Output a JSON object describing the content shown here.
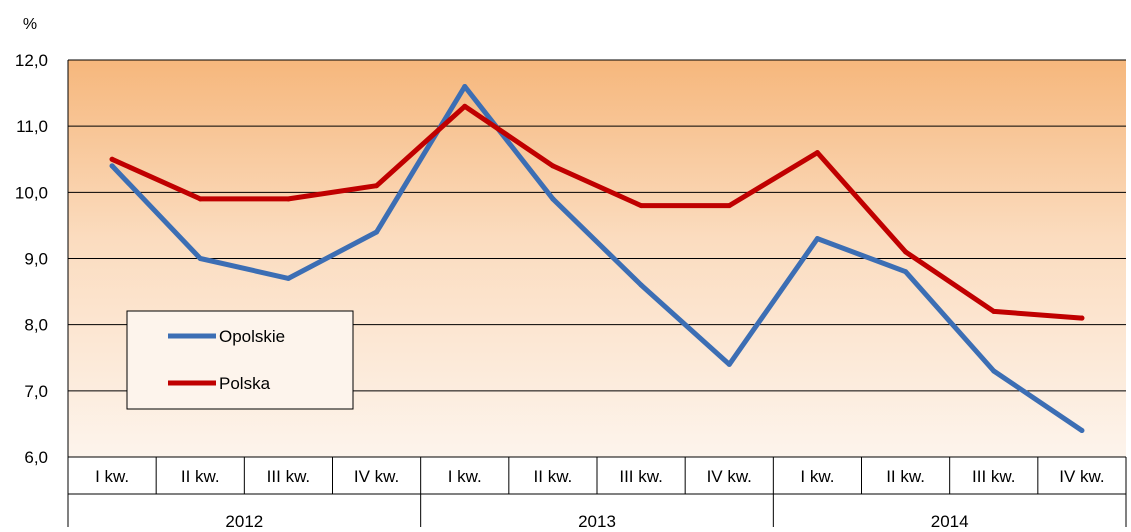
{
  "chart_data": {
    "type": "line",
    "ylabel": "%",
    "ylim": [
      6.0,
      12.0
    ],
    "yticks": [
      "6,0",
      "7,0",
      "8,0",
      "9,0",
      "10,0",
      "11,0",
      "12,0"
    ],
    "quarters": [
      "I kw.",
      "II kw.",
      "III kw.",
      "IV kw.",
      "I kw.",
      "II kw.",
      "III kw.",
      "IV kw.",
      "I kw.",
      "II kw.",
      "III kw.",
      "IV kw."
    ],
    "years": [
      "2012",
      "2013",
      "2014"
    ],
    "series": [
      {
        "name": "Opolskie",
        "color": "#3c6eb4",
        "values": [
          10.4,
          9.0,
          8.7,
          9.4,
          11.6,
          9.9,
          8.6,
          7.4,
          9.3,
          8.8,
          7.3,
          6.4
        ]
      },
      {
        "name": "Polska",
        "color": "#c00000",
        "values": [
          10.5,
          9.9,
          9.9,
          10.1,
          11.3,
          10.4,
          9.8,
          9.8,
          10.6,
          9.1,
          8.2,
          8.1
        ]
      }
    ],
    "grid": true,
    "legend_position": "bottom-left",
    "colors": {
      "background_top": "#f6b77c",
      "background_bottom": "#fdf4ec"
    }
  }
}
